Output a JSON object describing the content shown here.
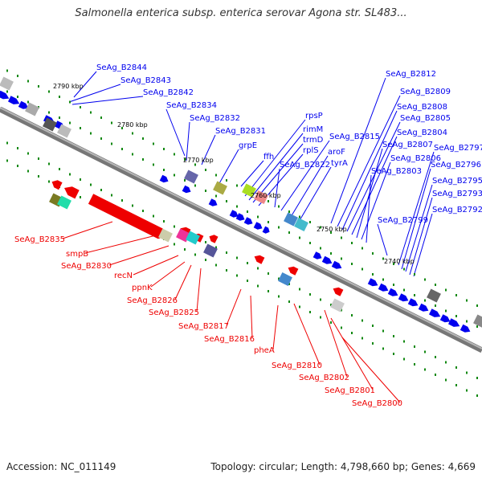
{
  "title": "Salmonella enterica subsp. enterica serovar Agona str. SL483...",
  "footer": {
    "accession": "Accession: NC_011149",
    "summary": "Topology: circular; Length: 4,798,660 bp; Genes: 4,669"
  },
  "colors": {
    "forward_strand": "#0000ee",
    "reverse_strand": "#ee0000",
    "backbone": "#808080",
    "tick": "#118811"
  },
  "scale_labels": [
    "2790 kbp",
    "2780 kbp",
    "2770 kbp",
    "2760 kbp",
    "2750 kbp",
    "2740 kbp"
  ],
  "forward_labels": [
    "SeAg_B2844",
    "SeAg_B2843",
    "SeAg_B2842",
    "SeAg_B2834",
    "SeAg_B2832",
    "SeAg_B2831",
    "grpE",
    "ffh",
    "rpsP",
    "rimM",
    "trmD",
    "rplS",
    "SeAg_B2822",
    "aroF",
    "tyrA",
    "SeAg_B2815",
    "SeAg_B2812",
    "SeAg_B2809",
    "SeAg_B2808",
    "SeAg_B2805",
    "SeAg_B2804",
    "SeAg_B2807",
    "SeAg_B2806",
    "SeAg_B2803",
    "SeAg_B2797",
    "SeAg_B2796",
    "SeAg_B2795",
    "SeAg_B2793",
    "SeAg_B2792",
    "SeAg_B2799"
  ],
  "reverse_labels": [
    "SeAg_B2835",
    "smpB",
    "SeAg_B2830",
    "recN",
    "ppnK",
    "SeAg_B2826",
    "SeAg_B2825",
    "SeAg_B2817",
    "SeAg_B2816",
    "pheA",
    "SeAg_B2810",
    "SeAg_B2802",
    "SeAg_B2801",
    "SeAg_B2800"
  ]
}
